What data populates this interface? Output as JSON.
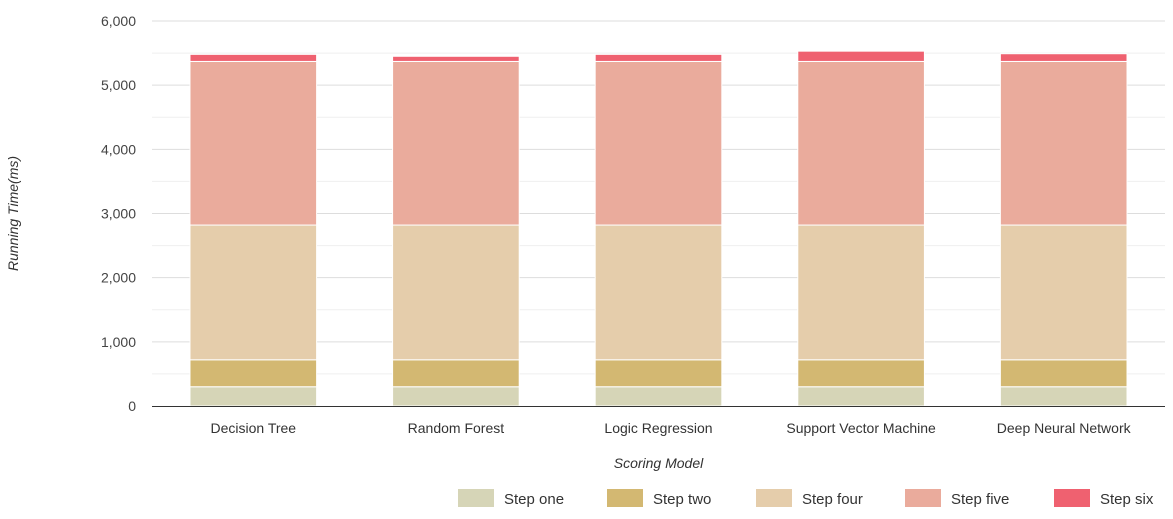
{
  "chart_data": {
    "type": "bar",
    "stacked": true,
    "categories": [
      "Decision Tree",
      "Random Forest",
      "Logic Regression",
      "Support Vector Machine",
      "Deep Neural Network"
    ],
    "series": [
      {
        "name": "Step one",
        "color": "#d6d5b7",
        "values": [
          300,
          300,
          300,
          300,
          300
        ]
      },
      {
        "name": "Step two",
        "color": "#d3b872",
        "values": [
          420,
          420,
          420,
          420,
          420
        ]
      },
      {
        "name": "Step four",
        "color": "#e5cdab",
        "values": [
          2100,
          2100,
          2100,
          2100,
          2100
        ]
      },
      {
        "name": "Step five",
        "color": "#eaab9c",
        "values": [
          2550,
          2550,
          2550,
          2550,
          2550
        ]
      },
      {
        "name": "Step six",
        "color": "#ef6170",
        "values": [
          110,
          80,
          110,
          160,
          120
        ]
      }
    ],
    "ylim": [
      0,
      6000
    ],
    "yticks": [
      "0",
      "1,000",
      "2,000",
      "3,000",
      "4,000",
      "5,000",
      "6,000"
    ],
    "xlabel": "Scoring Model",
    "ylabel": "Running Time(ms)",
    "grid": true,
    "legend": "bottom-right"
  }
}
